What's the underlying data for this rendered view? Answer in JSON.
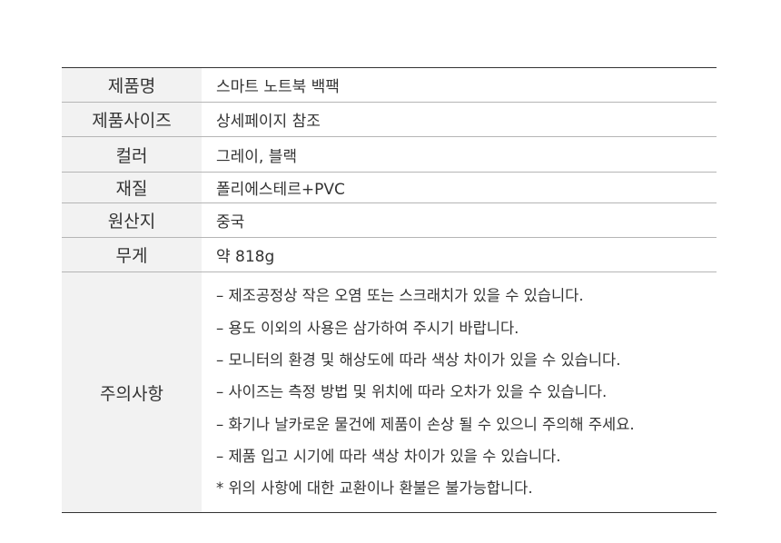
{
  "rows": [
    {
      "label": "제품명",
      "value": "스마트 노트북 백팩"
    },
    {
      "label": "제품사이즈",
      "value": "상세페이지 참조"
    },
    {
      "label": "컬러",
      "value": "그레이, 블랙"
    },
    {
      "label": "재질",
      "value": "폴리에스테르+PVC"
    },
    {
      "label": "원산지",
      "value": "중국"
    },
    {
      "label": "무게",
      "value": "약 818g"
    }
  ],
  "caution": {
    "label": "주의사항",
    "notes": [
      "– 제조공정상 작은 오염 또는 스크래치가 있을 수 있습니다.",
      "– 용도 이외의 사용은 삼가하여 주시기 바랍니다.",
      "– 모니터의 환경 및 해상도에 따라 색상 차이가 있을 수 있습니다.",
      "– 사이즈는 측정 방법 및 위치에 따라 오차가 있을 수 있습니다.",
      "– 화기나 날카로운 물건에 제품이 손상 될 수 있으니 주의해 주세요.",
      "– 제품 입고 시기에 따라 색상 차이가 있을 수 있습니다.",
      "* 위의 사항에 대한 교환이나 환불은 불가능합니다."
    ]
  }
}
